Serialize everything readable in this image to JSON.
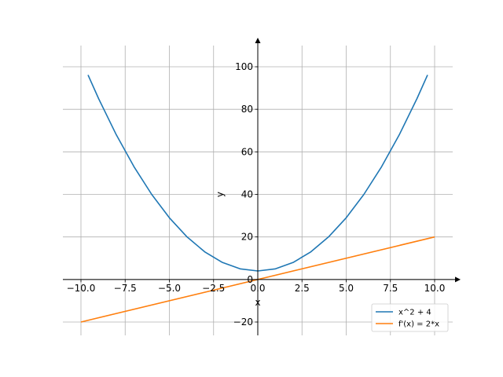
{
  "chart_data": {
    "type": "line",
    "xlabel": "x",
    "ylabel": "y",
    "xlim": [
      -10.0,
      10.0
    ],
    "ylim": [
      -20,
      100
    ],
    "x_ticks": [
      -10.0,
      -7.5,
      -5.0,
      -2.5,
      0.0,
      2.5,
      5.0,
      7.5,
      10.0
    ],
    "x_tick_labels": [
      "−10.0",
      "−7.5",
      "−5.0",
      "−2.5",
      "0.0",
      "2.5",
      "5.0",
      "7.5",
      "10.0"
    ],
    "y_ticks": [
      -20,
      0,
      20,
      40,
      60,
      80,
      100
    ],
    "y_tick_labels": [
      "−20",
      "0",
      "20",
      "40",
      "60",
      "80",
      "100"
    ],
    "grid": true,
    "legend_position": "lower-right",
    "series": [
      {
        "name": "x^2 + 4",
        "color": "#1f77b4",
        "x": [
          -9.6,
          -9,
          -8,
          -7,
          -6,
          -5,
          -4,
          -3,
          -2,
          -1,
          0,
          1,
          2,
          3,
          4,
          5,
          6,
          7,
          8,
          9,
          9.6
        ],
        "y": [
          96.16,
          85,
          68,
          53,
          40,
          29,
          20,
          13,
          8,
          5,
          4,
          5,
          8,
          13,
          20,
          29,
          40,
          53,
          68,
          85,
          96.16
        ]
      },
      {
        "name": "f'(x) = 2*x",
        "color": "#ff7f0e",
        "x": [
          -10,
          10
        ],
        "y": [
          -20,
          20
        ]
      }
    ]
  }
}
